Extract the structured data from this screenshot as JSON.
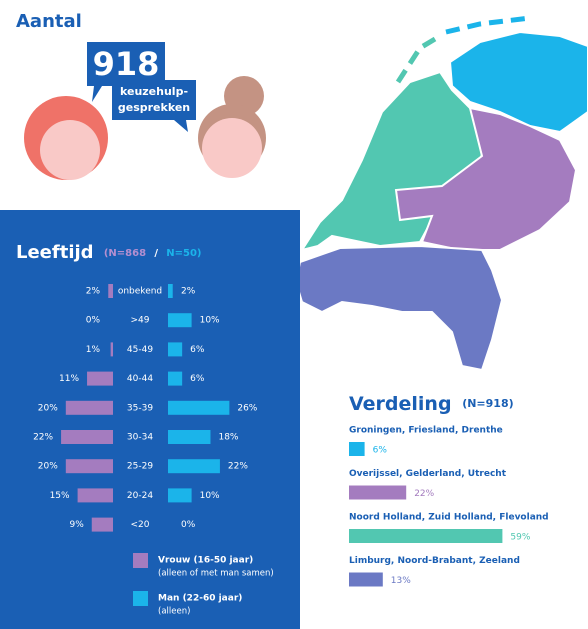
{
  "header": {
    "title": "Aantal",
    "count": "918",
    "count_label": [
      "keuzehulp-",
      "gesprekken"
    ]
  },
  "age": {
    "title": "Leeftijd",
    "n_women": "(N=868",
    "n_sep": "/",
    "n_men": "N=50)",
    "categories": [
      "onbekend",
      ">49",
      "45-49",
      "40-44",
      "35-39",
      "30-34",
      "25-29",
      "20-24",
      "<20"
    ],
    "series": [
      {
        "name": "Vrouw (16-50 jaar)",
        "note": "(alleen of met man samen)",
        "color": "#a47cbf",
        "values": [
          2,
          0,
          1,
          11,
          20,
          22,
          20,
          15,
          9
        ],
        "value_labels": [
          "2%",
          "0%",
          "1%",
          "11%",
          "20%",
          "22%",
          "20%",
          "15%",
          "9%"
        ]
      },
      {
        "name": "Man (22-60 jaar)",
        "note": "(alleen)",
        "color": "#1bb4ea",
        "values": [
          2,
          10,
          6,
          6,
          26,
          18,
          22,
          10,
          0
        ],
        "value_labels": [
          "2%",
          "10%",
          "6%",
          "6%",
          "26%",
          "18%",
          "22%",
          "10%",
          "0%"
        ]
      }
    ]
  },
  "distribution": {
    "title": "Verdeling",
    "n": "(N=918)",
    "categories": [
      "Groningen, Friesland, Drenthe",
      "Overijssel, Gelderland, Utrecht",
      "Noord Holland, Zuid Holland, Flevoland",
      "Limburg, Noord-Brabant, Zeeland"
    ],
    "values": [
      6,
      22,
      59,
      13
    ],
    "value_labels": [
      "6%",
      "22%",
      "59%",
      "13%"
    ],
    "colors": [
      "#1bb4ea",
      "#a47cbf",
      "#52c7b1",
      "#6b79c4"
    ]
  }
}
